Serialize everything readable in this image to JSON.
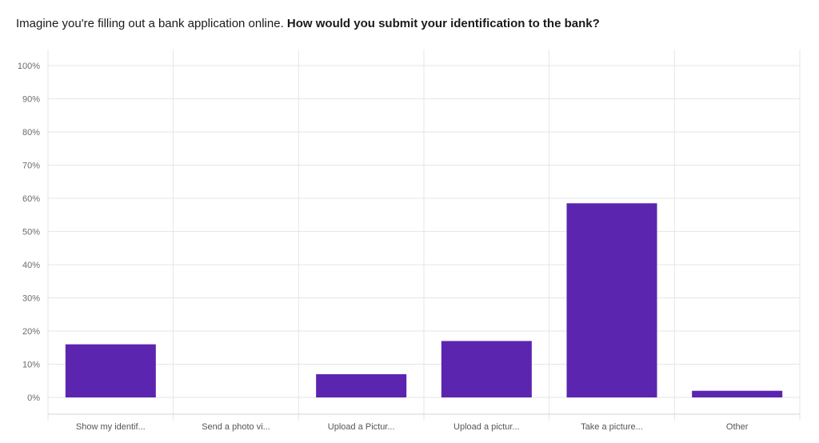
{
  "question": {
    "prefix": "Imagine you're filling out a bank application online.",
    "emphasis": "How would you submit your identification to the bank?"
  },
  "chart_data": {
    "type": "bar",
    "categories": [
      "Show my identif...",
      "Send a photo vi...",
      "Upload a Pictur...",
      "Upload a pictur...",
      "Take a picture...",
      "Other"
    ],
    "values": [
      16,
      0,
      7,
      17,
      58.5,
      2
    ],
    "ylim": [
      0,
      100
    ],
    "yticks": [
      0,
      10,
      20,
      30,
      40,
      50,
      60,
      70,
      80,
      90,
      100
    ],
    "ytick_labels": [
      "0%",
      "10%",
      "20%",
      "30%",
      "40%",
      "50%",
      "60%",
      "70%",
      "80%",
      "90%",
      "100%"
    ],
    "grid": true,
    "bar_color": "#5b25b0",
    "grid_color": "#e6e6e6"
  }
}
